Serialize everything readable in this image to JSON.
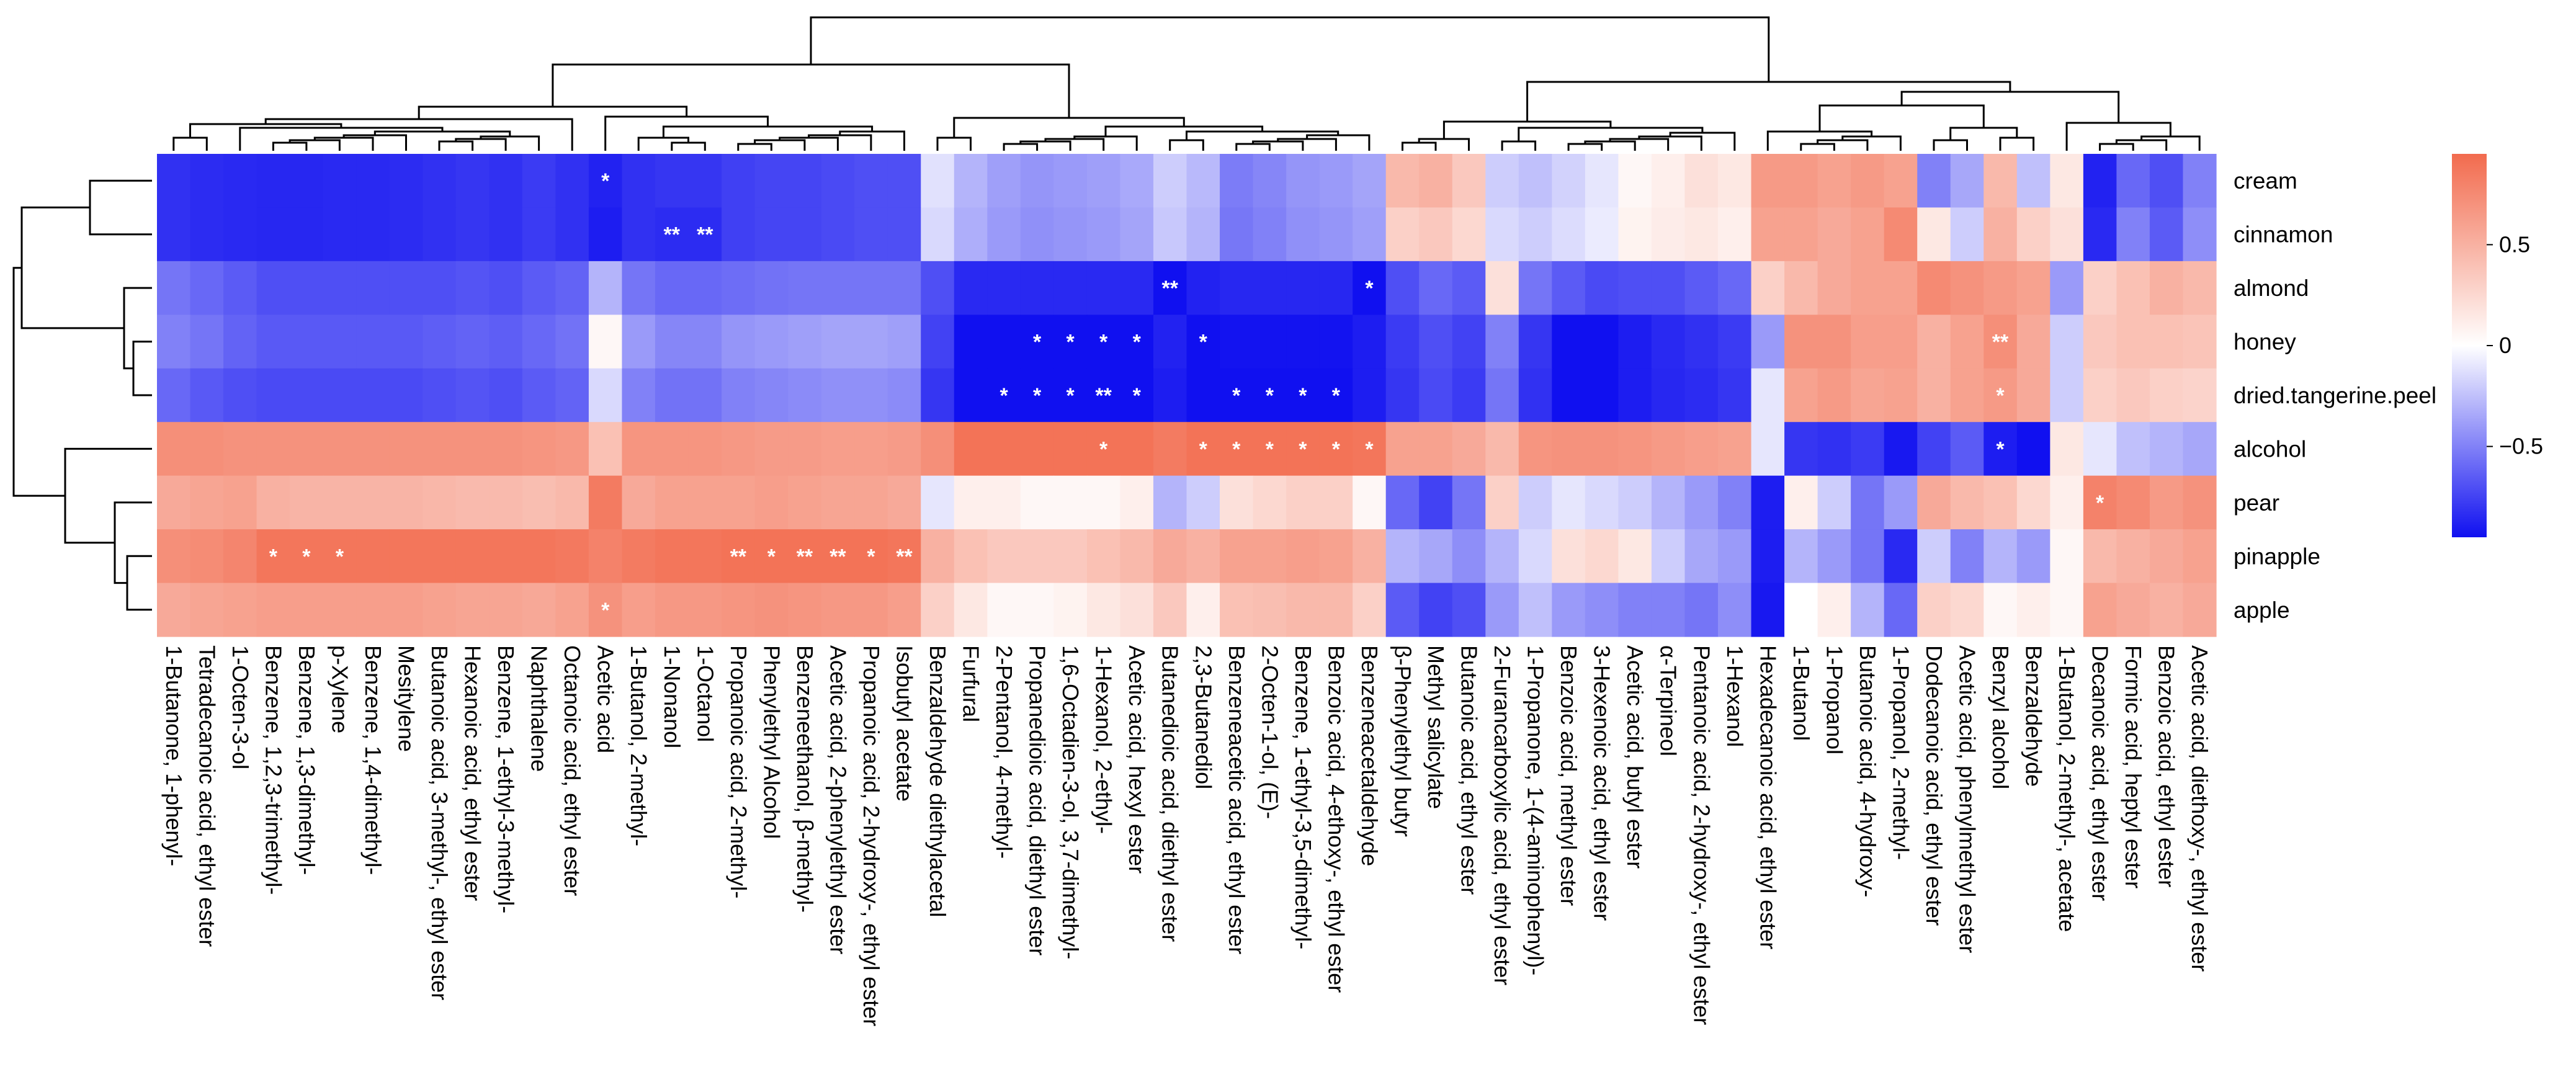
{
  "chart_data": {
    "type": "heatmap",
    "title": "",
    "rows": [
      "cream",
      "cinnamon",
      "almond",
      "honey",
      "dried.tangerine.peel",
      "alcohol",
      "pear",
      "pinapple",
      "apple"
    ],
    "columns": [
      "1-Butanone, 1-phenyl-",
      "Tetradecanoic acid, ethyl ester",
      "1-Octen-3-ol",
      "Benzene, 1,2,3-trimethyl-",
      "Benzene, 1,3-dimethyl-",
      "p-Xylene",
      "Benzene, 1,4-dimethyl-",
      "Mesitylene",
      "Butanoic acid, 3-methyl-, ethyl ester",
      "Hexanoic acid, ethyl ester",
      "Benzene, 1-ethyl-3-methyl-",
      "Naphthalene",
      "Octanoic acid, ethyl ester",
      "Acetic acid",
      "1-Butanol, 2-methyl-",
      "1-Nonanol",
      "1-Octanol",
      "Propanoic acid, 2-methyl-",
      "Phenylethyl Alcohol",
      "Benzeneethanol, β-methyl-",
      "Acetic acid, 2-phenylethyl ester",
      "Propanoic acid, 2-hydroxy-, ethyl ester",
      "Isobutyl acetate",
      "Benzaldehyde diethylacetal",
      "Furfural",
      "2-Pentanol, 4-methyl-",
      "Propanedioic acid, diethyl ester",
      "1,6-Octadien-3-ol, 3,7-dimethyl-",
      "1-Hexanol, 2-ethyl-",
      "Acetic acid, hexyl ester",
      "Butanedioic acid, diethyl ester",
      "2,3-Butanediol",
      "Benzeneacetic acid, ethyl ester",
      "2-Octen-1-ol, (E)-",
      "Benzene, 1-ethyl-3,5-dimethyl-",
      "Benzoic acid, 4-ethoxy-, ethyl ester",
      "Benzeneacetaldehyde",
      "β-Phenylethyl butyr",
      "Methyl salicylate",
      "Butanoic acid, ethyl ester",
      "2-Furancarboxylic acid, ethyl ester",
      "1-Propanone, 1-(4-aminophenyl)-",
      "Benzoic acid, methyl ester",
      "3-Hexenoic acid, ethyl ester",
      "Acetic acid, butyl ester",
      "α-Terpineol",
      "Pentanoic acid, 2-hydroxy-, ethyl ester",
      "1-Hexanol",
      "Hexadecanoic acid, ethyl ester",
      "1-Butanol",
      "1-Propanol",
      "Butanoic acid, 4-hydroxy-",
      "1-Propanol, 2-methyl-",
      "Dodecanoic acid, ethyl ester",
      "Acetic acid, phenylmethyl ester",
      "Benzyl alcohol",
      "Benzaldehyde",
      "1-Butanol, 2-methyl-, acetate",
      "Decanoic acid, ethyl ester",
      "Formic acid, heptyl ester",
      "Benzoic acid, ethyl ester",
      "Acetic acid, diethoxy-, ethyl ester"
    ],
    "values": [
      [
        -0.82,
        -0.84,
        -0.85,
        -0.86,
        -0.86,
        -0.85,
        -0.85,
        -0.84,
        -0.82,
        -0.8,
        -0.82,
        -0.78,
        -0.82,
        -0.88,
        -0.82,
        -0.8,
        -0.8,
        -0.76,
        -0.74,
        -0.74,
        -0.72,
        -0.7,
        -0.7,
        -0.12,
        -0.3,
        -0.38,
        -0.42,
        -0.4,
        -0.38,
        -0.34,
        -0.2,
        -0.28,
        -0.52,
        -0.48,
        -0.42,
        -0.4,
        -0.36,
        0.45,
        0.5,
        0.35,
        -0.2,
        -0.25,
        -0.18,
        -0.1,
        0.05,
        0.1,
        0.2,
        0.15,
        0.65,
        0.65,
        0.6,
        0.65,
        0.6,
        -0.5,
        -0.35,
        0.45,
        -0.25,
        0.15,
        -0.88,
        -0.6,
        -0.7,
        -0.5
      ],
      [
        -0.82,
        -0.84,
        -0.85,
        -0.86,
        -0.86,
        -0.85,
        -0.85,
        -0.84,
        -0.82,
        -0.8,
        -0.82,
        -0.78,
        -0.82,
        -0.9,
        -0.82,
        -0.84,
        -0.84,
        -0.76,
        -0.74,
        -0.74,
        -0.72,
        -0.7,
        -0.7,
        -0.15,
        -0.32,
        -0.4,
        -0.44,
        -0.42,
        -0.4,
        -0.36,
        -0.22,
        -0.3,
        -0.54,
        -0.5,
        -0.44,
        -0.42,
        -0.38,
        0.3,
        0.35,
        0.25,
        -0.15,
        -0.2,
        -0.14,
        -0.08,
        0.08,
        0.12,
        0.15,
        0.1,
        0.6,
        0.6,
        0.55,
        0.6,
        0.75,
        0.15,
        -0.2,
        0.5,
        0.3,
        0.2,
        -0.85,
        -0.5,
        -0.65,
        -0.45
      ],
      [
        -0.55,
        -0.6,
        -0.65,
        -0.7,
        -0.7,
        -0.7,
        -0.7,
        -0.7,
        -0.7,
        -0.68,
        -0.7,
        -0.65,
        -0.62,
        -0.3,
        -0.55,
        -0.6,
        -0.6,
        -0.58,
        -0.56,
        -0.55,
        -0.55,
        -0.55,
        -0.55,
        -0.7,
        -0.85,
        -0.85,
        -0.85,
        -0.85,
        -0.85,
        -0.85,
        -0.95,
        -0.88,
        -0.86,
        -0.86,
        -0.86,
        -0.86,
        -0.95,
        -0.7,
        -0.6,
        -0.65,
        0.2,
        -0.55,
        -0.65,
        -0.72,
        -0.7,
        -0.7,
        -0.65,
        -0.6,
        0.3,
        0.45,
        0.55,
        0.6,
        0.6,
        0.75,
        0.7,
        0.65,
        0.6,
        -0.4,
        0.3,
        0.4,
        0.5,
        0.45
      ],
      [
        -0.5,
        -0.55,
        -0.62,
        -0.66,
        -0.66,
        -0.66,
        -0.66,
        -0.66,
        -0.64,
        -0.62,
        -0.64,
        -0.6,
        -0.56,
        0.05,
        -0.4,
        -0.48,
        -0.48,
        -0.42,
        -0.4,
        -0.38,
        -0.36,
        -0.36,
        -0.38,
        -0.75,
        -0.95,
        -0.96,
        -0.96,
        -0.96,
        -0.96,
        -0.96,
        -0.88,
        -0.96,
        -0.94,
        -0.94,
        -0.94,
        -0.94,
        -0.9,
        -0.78,
        -0.7,
        -0.75,
        -0.5,
        -0.8,
        -0.95,
        -0.95,
        -0.9,
        -0.85,
        -0.82,
        -0.78,
        -0.4,
        0.7,
        0.7,
        0.62,
        0.62,
        0.5,
        0.6,
        0.72,
        0.55,
        -0.2,
        0.35,
        0.4,
        0.4,
        0.38
      ],
      [
        -0.6,
        -0.66,
        -0.7,
        -0.72,
        -0.72,
        -0.72,
        -0.72,
        -0.72,
        -0.7,
        -0.68,
        -0.7,
        -0.65,
        -0.62,
        -0.15,
        -0.5,
        -0.56,
        -0.56,
        -0.5,
        -0.48,
        -0.46,
        -0.44,
        -0.44,
        -0.46,
        -0.8,
        -0.95,
        -0.96,
        -0.96,
        -0.96,
        -0.96,
        -0.96,
        -0.9,
        -0.96,
        -0.95,
        -0.95,
        -0.95,
        -0.95,
        -0.9,
        -0.8,
        -0.72,
        -0.78,
        -0.55,
        -0.82,
        -0.95,
        -0.95,
        -0.9,
        -0.86,
        -0.84,
        -0.8,
        -0.1,
        0.6,
        0.65,
        0.58,
        0.6,
        0.5,
        0.6,
        0.65,
        0.55,
        -0.2,
        0.3,
        0.35,
        0.3,
        0.28
      ],
      [
        0.72,
        0.72,
        0.7,
        0.7,
        0.7,
        0.7,
        0.7,
        0.7,
        0.7,
        0.7,
        0.7,
        0.68,
        0.66,
        0.4,
        0.68,
        0.68,
        0.68,
        0.66,
        0.64,
        0.64,
        0.62,
        0.62,
        0.64,
        0.72,
        0.9,
        0.9,
        0.9,
        0.9,
        0.9,
        0.9,
        0.85,
        0.9,
        0.9,
        0.9,
        0.9,
        0.9,
        0.88,
        0.6,
        0.6,
        0.55,
        0.45,
        0.68,
        0.7,
        0.7,
        0.68,
        0.65,
        0.62,
        0.6,
        -0.1,
        -0.8,
        -0.82,
        -0.78,
        -0.92,
        -0.75,
        -0.65,
        -0.9,
        -0.95,
        0.15,
        -0.1,
        -0.25,
        -0.3,
        -0.35
      ],
      [
        0.55,
        0.58,
        0.6,
        0.5,
        0.48,
        0.48,
        0.48,
        0.48,
        0.46,
        0.44,
        0.44,
        0.42,
        0.45,
        0.85,
        0.55,
        0.6,
        0.6,
        0.6,
        0.62,
        0.6,
        0.58,
        0.58,
        0.55,
        -0.1,
        0.1,
        0.1,
        0.05,
        0.05,
        0.05,
        0.1,
        -0.3,
        -0.2,
        0.2,
        0.25,
        0.3,
        0.3,
        0.05,
        -0.6,
        -0.75,
        -0.55,
        0.3,
        -0.2,
        -0.1,
        -0.15,
        -0.2,
        -0.3,
        -0.4,
        -0.5,
        -0.9,
        0.1,
        -0.2,
        -0.55,
        -0.4,
        0.55,
        0.45,
        0.4,
        0.25,
        0.1,
        0.8,
        0.75,
        0.65,
        0.7
      ],
      [
        0.72,
        0.74,
        0.78,
        0.88,
        0.88,
        0.88,
        0.88,
        0.88,
        0.88,
        0.88,
        0.88,
        0.88,
        0.86,
        0.8,
        0.85,
        0.88,
        0.88,
        0.9,
        0.9,
        0.9,
        0.9,
        0.9,
        0.88,
        0.5,
        0.4,
        0.35,
        0.35,
        0.35,
        0.4,
        0.45,
        0.55,
        0.5,
        0.6,
        0.6,
        0.62,
        0.6,
        0.5,
        -0.3,
        -0.35,
        -0.45,
        -0.3,
        -0.15,
        0.2,
        0.25,
        0.15,
        -0.2,
        -0.35,
        -0.4,
        -0.9,
        -0.3,
        -0.4,
        -0.55,
        -0.85,
        -0.2,
        -0.5,
        -0.3,
        -0.4,
        0.05,
        0.45,
        0.5,
        0.55,
        0.6
      ],
      [
        0.55,
        0.58,
        0.6,
        0.62,
        0.62,
        0.62,
        0.62,
        0.62,
        0.6,
        0.58,
        0.58,
        0.56,
        0.6,
        0.7,
        0.62,
        0.66,
        0.66,
        0.68,
        0.7,
        0.68,
        0.66,
        0.66,
        0.62,
        0.3,
        0.15,
        0.05,
        0.05,
        0.08,
        0.15,
        0.2,
        0.35,
        0.1,
        0.4,
        0.42,
        0.45,
        0.45,
        0.3,
        -0.65,
        -0.75,
        -0.7,
        -0.4,
        -0.25,
        -0.4,
        -0.45,
        -0.5,
        -0.5,
        -0.55,
        -0.45,
        -0.92,
        0.0,
        0.1,
        -0.3,
        -0.6,
        0.3,
        0.25,
        0.05,
        0.1,
        0.05,
        0.6,
        0.55,
        0.5,
        0.55
      ]
    ],
    "significance": [
      {
        "row": 0,
        "col": 13,
        "mark": "*"
      },
      {
        "row": 1,
        "col": 15,
        "mark": "**"
      },
      {
        "row": 1,
        "col": 16,
        "mark": "**"
      },
      {
        "row": 2,
        "col": 30,
        "mark": "**"
      },
      {
        "row": 2,
        "col": 36,
        "mark": "*"
      },
      {
        "row": 3,
        "col": 26,
        "mark": "*"
      },
      {
        "row": 3,
        "col": 27,
        "mark": "*"
      },
      {
        "row": 3,
        "col": 28,
        "mark": "*"
      },
      {
        "row": 3,
        "col": 29,
        "mark": "*"
      },
      {
        "row": 3,
        "col": 31,
        "mark": "*"
      },
      {
        "row": 3,
        "col": 55,
        "mark": "**"
      },
      {
        "row": 4,
        "col": 25,
        "mark": "*"
      },
      {
        "row": 4,
        "col": 26,
        "mark": "*"
      },
      {
        "row": 4,
        "col": 27,
        "mark": "*"
      },
      {
        "row": 4,
        "col": 28,
        "mark": "**"
      },
      {
        "row": 4,
        "col": 29,
        "mark": "*"
      },
      {
        "row": 4,
        "col": 32,
        "mark": "*"
      },
      {
        "row": 4,
        "col": 33,
        "mark": "*"
      },
      {
        "row": 4,
        "col": 34,
        "mark": "*"
      },
      {
        "row": 4,
        "col": 35,
        "mark": "*"
      },
      {
        "row": 4,
        "col": 55,
        "mark": "*"
      },
      {
        "row": 5,
        "col": 28,
        "mark": "*"
      },
      {
        "row": 5,
        "col": 31,
        "mark": "*"
      },
      {
        "row": 5,
        "col": 32,
        "mark": "*"
      },
      {
        "row": 5,
        "col": 33,
        "mark": "*"
      },
      {
        "row": 5,
        "col": 34,
        "mark": "*"
      },
      {
        "row": 5,
        "col": 35,
        "mark": "*"
      },
      {
        "row": 5,
        "col": 36,
        "mark": "*"
      },
      {
        "row": 5,
        "col": 55,
        "mark": "*"
      },
      {
        "row": 6,
        "col": 58,
        "mark": "*"
      },
      {
        "row": 7,
        "col": 3,
        "mark": "*"
      },
      {
        "row": 7,
        "col": 4,
        "mark": "*"
      },
      {
        "row": 7,
        "col": 5,
        "mark": "*"
      },
      {
        "row": 7,
        "col": 17,
        "mark": "**"
      },
      {
        "row": 7,
        "col": 18,
        "mark": "*"
      },
      {
        "row": 7,
        "col": 19,
        "mark": "**"
      },
      {
        "row": 7,
        "col": 20,
        "mark": "**"
      },
      {
        "row": 7,
        "col": 21,
        "mark": "*"
      },
      {
        "row": 7,
        "col": 22,
        "mark": "**"
      },
      {
        "row": 8,
        "col": 13,
        "mark": "*"
      }
    ],
    "color_scale": {
      "range": [
        -0.95,
        0.95
      ],
      "low": "#1010f0",
      "mid": "#ffffff",
      "high": "#f26b4e",
      "ticks": [
        0.5,
        0,
        -0.5
      ]
    },
    "row_dendrogram": true,
    "column_dendrogram": true
  }
}
